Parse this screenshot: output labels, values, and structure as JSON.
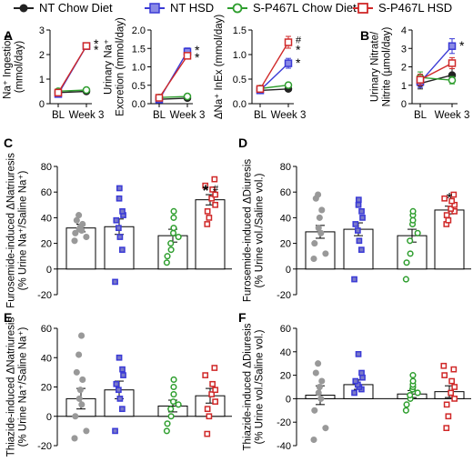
{
  "legend": [
    {
      "label": "NT Chow Diet",
      "color": "#222222",
      "marker": "circle",
      "fill": "#222222"
    },
    {
      "label": "NT HSD",
      "color": "#3a3ad6",
      "marker": "square",
      "fill": "#8a8ae6"
    },
    {
      "label": "S-P467L Chow Diet",
      "color": "#2e9e2e",
      "marker": "circle",
      "fill": "#ffffff"
    },
    {
      "label": "S-P467L HSD",
      "color": "#d02828",
      "marker": "square",
      "fill": "#ffffff"
    }
  ],
  "panels": [
    {
      "letter": "A"
    },
    {
      "letter": "B"
    },
    {
      "letter": "C"
    },
    {
      "letter": "D"
    },
    {
      "letter": "E"
    },
    {
      "letter": "F"
    }
  ],
  "chart_data": [
    {
      "panel": "A",
      "type": "line",
      "ylabel": [
        "Na⁺ Ingestion",
        "(mmol/day)"
      ],
      "x": [
        "BL",
        "Week 3"
      ],
      "ylim": [
        0,
        3
      ],
      "yticks": [
        0,
        1,
        2,
        3
      ],
      "series": [
        {
          "name": "NT Chow Diet",
          "values": [
            0.45,
            0.5
          ],
          "err": [
            0.03,
            0.03
          ]
        },
        {
          "name": "NT HSD",
          "values": [
            0.45,
            2.4
          ],
          "err": [
            0.03,
            0.12
          ]
        },
        {
          "name": "S-P467L Chow Diet",
          "values": [
            0.45,
            0.5
          ],
          "err": [
            0.03,
            0.03
          ]
        },
        {
          "name": "S-P467L HSD",
          "values": [
            0.45,
            2.35
          ],
          "err": [
            0.03,
            0.1
          ]
        }
      ],
      "annotations": [
        "*",
        "*"
      ]
    },
    {
      "panel": "A",
      "type": "line",
      "ylabel": [
        "Urinary Na⁺",
        "Excretion (mmol/day)"
      ],
      "x": [
        "BL",
        "Week 3"
      ],
      "ylim": [
        0,
        2.0
      ],
      "yticks": [
        0.0,
        0.5,
        1.0,
        1.5,
        2.0
      ],
      "series": [
        {
          "name": "NT Chow Diet",
          "values": [
            0.12,
            0.15
          ],
          "err": [
            0.02,
            0.02
          ]
        },
        {
          "name": "NT HSD",
          "values": [
            0.15,
            1.45
          ],
          "err": [
            0.02,
            0.1
          ]
        },
        {
          "name": "S-P467L Chow Diet",
          "values": [
            0.13,
            0.16
          ],
          "err": [
            0.02,
            0.02
          ]
        },
        {
          "name": "S-P467L HSD",
          "values": [
            0.16,
            1.3
          ],
          "err": [
            0.02,
            0.08
          ]
        }
      ],
      "annotations": [
        "*",
        "*"
      ]
    },
    {
      "panel": "A",
      "type": "line",
      "ylabel": [
        "ΔNa⁺ InEx (mmol/day)"
      ],
      "x": [
        "BL",
        "Week 3"
      ],
      "ylim": [
        0.0,
        1.5
      ],
      "yticks": [
        0.0,
        0.5,
        1.0,
        1.5
      ],
      "series": [
        {
          "name": "NT Chow Diet",
          "values": [
            0.27,
            0.3
          ],
          "err": [
            0.05,
            0.05
          ]
        },
        {
          "name": "NT HSD",
          "values": [
            0.3,
            0.85
          ],
          "err": [
            0.05,
            0.1
          ]
        },
        {
          "name": "S-P467L Chow Diet",
          "values": [
            0.28,
            0.35
          ],
          "err": [
            0.05,
            0.05
          ]
        },
        {
          "name": "S-P467L HSD",
          "values": [
            0.3,
            1.25
          ],
          "err": [
            0.05,
            0.12
          ]
        }
      ],
      "annotations": [
        "#",
        "*",
        "*"
      ]
    },
    {
      "panel": "B",
      "type": "line",
      "ylabel": [
        "Urinary Nitrate/",
        "Nitrite (µmol/day)"
      ],
      "x": [
        "BL",
        "Week 3"
      ],
      "ylim": [
        0,
        4
      ],
      "yticks": [
        0,
        1,
        2,
        3,
        4
      ],
      "series": [
        {
          "name": "NT Chow Diet",
          "values": [
            1.1,
            1.55
          ],
          "err": [
            0.3,
            0.35
          ]
        },
        {
          "name": "NT HSD",
          "values": [
            1.25,
            3.2
          ],
          "err": [
            0.3,
            0.4
          ]
        },
        {
          "name": "S-P467L Chow Diet",
          "values": [
            1.35,
            1.2
          ],
          "err": [
            0.3,
            0.2
          ]
        },
        {
          "name": "S-P467L HSD",
          "values": [
            1.3,
            2.2
          ],
          "err": [
            0.3,
            0.3
          ]
        }
      ],
      "annotations": [
        "*"
      ]
    },
    {
      "panel": "C",
      "type": "bar",
      "ylabel": [
        "Furosemide-induced ΔNatriuresis",
        "(% Urine Na⁺/Saline Na⁺)"
      ],
      "ylim": [
        -20,
        80
      ],
      "yticks": [
        -20,
        0,
        20,
        40,
        60,
        80
      ],
      "groups": [
        {
          "name": "NT Chow Diet",
          "mean": 32,
          "err": 3,
          "points": [
            22,
            25,
            28,
            30,
            31,
            33,
            35,
            38,
            42
          ]
        },
        {
          "name": "NT HSD",
          "mean": 33,
          "err": 6,
          "points": [
            -10,
            15,
            25,
            32,
            38,
            42,
            45,
            55,
            63
          ]
        },
        {
          "name": "S-P467L Chow Diet",
          "mean": 26,
          "err": 5,
          "points": [
            5,
            10,
            15,
            20,
            25,
            28,
            32,
            40,
            45
          ]
        },
        {
          "name": "S-P467L HSD",
          "mean": 54,
          "err": 4,
          "points": [
            35,
            40,
            45,
            50,
            55,
            58,
            62,
            65,
            70
          ]
        }
      ],
      "annotations": [
        "*#"
      ]
    },
    {
      "panel": "D",
      "type": "bar",
      "ylabel": [
        "Furosemide-induced ΔDiuresis",
        "(% Urine vol./Saline vol.)"
      ],
      "ylim": [
        -20,
        80
      ],
      "yticks": [
        -20,
        0,
        20,
        40,
        60,
        80
      ],
      "groups": [
        {
          "name": "NT Chow Diet",
          "mean": 29,
          "err": 5,
          "points": [
            8,
            12,
            20,
            28,
            32,
            40,
            46,
            55,
            58
          ]
        },
        {
          "name": "NT HSD",
          "mean": 31,
          "err": 5,
          "points": [
            -8,
            15,
            22,
            30,
            35,
            40,
            45,
            50,
            54
          ]
        },
        {
          "name": "S-P467L Chow Diet",
          "mean": 26,
          "err": 5,
          "points": [
            -8,
            5,
            12,
            22,
            28,
            35,
            38,
            42,
            45
          ]
        },
        {
          "name": "S-P467L HSD",
          "mean": 46,
          "err": 3,
          "points": [
            35,
            38,
            42,
            45,
            47,
            50,
            53,
            55,
            58
          ]
        }
      ],
      "annotations": [
        "*"
      ]
    },
    {
      "panel": "E",
      "type": "bar",
      "ylabel": [
        "Thiazide-induced ΔNatriuresis",
        "(% Urine Na⁺/Saline Na⁺)"
      ],
      "ylim": [
        -20,
        60
      ],
      "yticks": [
        -20,
        0,
        20,
        40,
        60
      ],
      "groups": [
        {
          "name": "NT Chow Diet",
          "mean": 12,
          "err": 7,
          "points": [
            -15,
            -10,
            0,
            8,
            12,
            18,
            25,
            30,
            42,
            55
          ]
        },
        {
          "name": "NT HSD",
          "mean": 18,
          "err": 6,
          "points": [
            -10,
            5,
            12,
            18,
            22,
            28,
            32,
            40
          ]
        },
        {
          "name": "S-P467L Chow Diet",
          "mean": 7,
          "err": 4,
          "points": [
            -10,
            -5,
            0,
            5,
            8,
            10,
            15,
            20,
            25
          ]
        },
        {
          "name": "S-P467L HSD",
          "mean": 14,
          "err": 5,
          "points": [
            -12,
            0,
            5,
            10,
            15,
            18,
            22,
            28,
            33
          ]
        }
      ],
      "annotations": []
    },
    {
      "panel": "F",
      "type": "bar",
      "ylabel": [
        "Thiazide-induced ΔDiuresis",
        "(% Urine vol./Saline vol.)"
      ],
      "ylim": [
        -40,
        60
      ],
      "yticks": [
        -40,
        -20,
        0,
        20,
        40,
        60
      ],
      "groups": [
        {
          "name": "NT Chow Diet",
          "mean": 3,
          "err": 8,
          "points": [
            -35,
            -25,
            -10,
            0,
            5,
            10,
            15,
            22,
            30
          ]
        },
        {
          "name": "NT HSD",
          "mean": 12,
          "err": 4,
          "points": [
            5,
            8,
            10,
            12,
            15,
            18,
            22,
            38
          ]
        },
        {
          "name": "S-P467L Chow Diet",
          "mean": 4,
          "err": 3,
          "points": [
            -10,
            -5,
            0,
            3,
            5,
            8,
            10,
            12,
            15,
            20
          ]
        },
        {
          "name": "S-P467L HSD",
          "mean": 6,
          "err": 5,
          "points": [
            -25,
            -15,
            -5,
            0,
            5,
            10,
            15,
            20,
            25,
            28
          ]
        }
      ],
      "annotations": []
    }
  ]
}
